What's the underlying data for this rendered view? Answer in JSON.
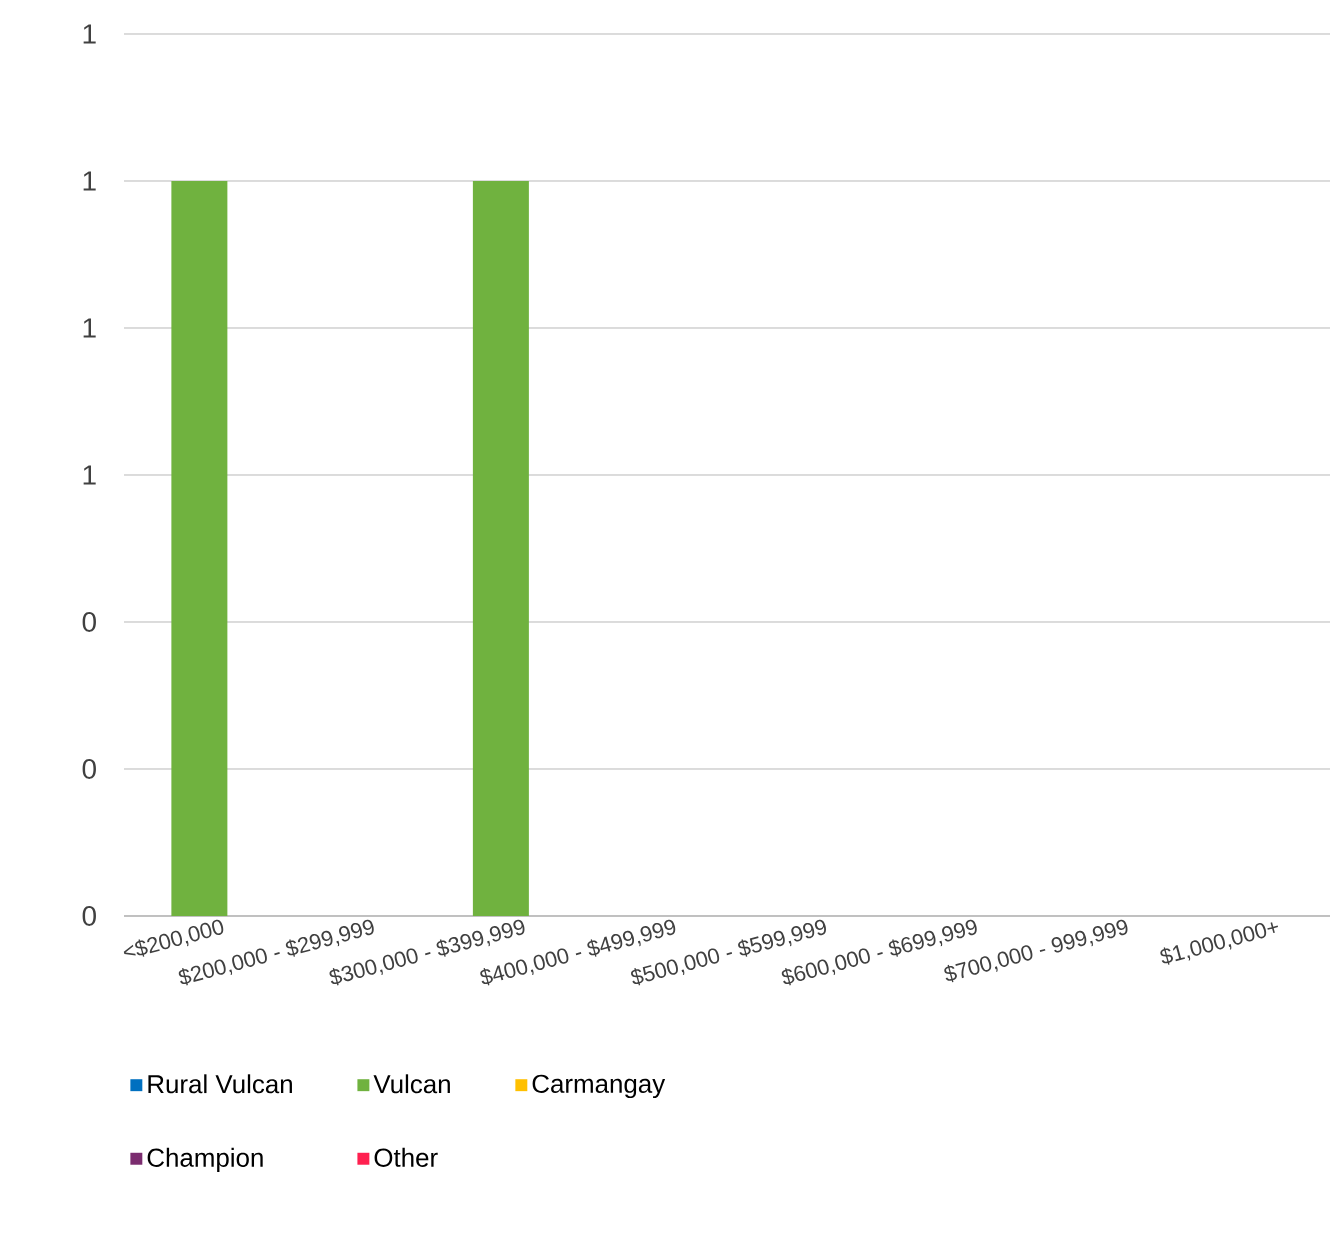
{
  "chart_data": {
    "type": "bar",
    "stacked": true,
    "categories": [
      "<$200,000",
      "$200,000 - $299,999",
      "$300,000 - $399,999",
      "$400,000 - $499,999",
      "$500,000 - $599,999",
      "$600,000 - $699,999",
      "$700,000 - 999,999",
      "$1,000,000+"
    ],
    "series": [
      {
        "name": "Rural Vulcan",
        "color": "#0070c0",
        "values": [
          0,
          0,
          0,
          0,
          0,
          0,
          0,
          0
        ]
      },
      {
        "name": "Vulcan",
        "color": "#70b23f",
        "values": [
          1,
          0,
          1,
          0,
          0,
          0,
          0,
          0
        ]
      },
      {
        "name": "Carmangay",
        "color": "#ffc000",
        "values": [
          0,
          0,
          0,
          0,
          0,
          0,
          0,
          0
        ]
      },
      {
        "name": "Champion",
        "color": "#7b2c6f",
        "values": [
          0,
          0,
          0,
          0,
          0,
          0,
          0,
          0
        ]
      },
      {
        "name": "Other",
        "color": "#ff2050",
        "values": [
          0,
          0,
          0,
          0,
          0,
          0,
          0,
          0
        ]
      }
    ],
    "ylim": [
      0,
      1.2
    ],
    "yticks": [
      0,
      {
        "value": 0.2,
        "label": "0"
      },
      {
        "value": 0.4,
        "label": "0"
      },
      {
        "value": 0.6,
        "label": "1"
      },
      {
        "value": 0.8,
        "label": "1"
      },
      {
        "value": 1.0,
        "label": "1"
      },
      {
        "value": 1.2,
        "label": "1"
      }
    ],
    "grid": "y",
    "legend": "bottom"
  }
}
